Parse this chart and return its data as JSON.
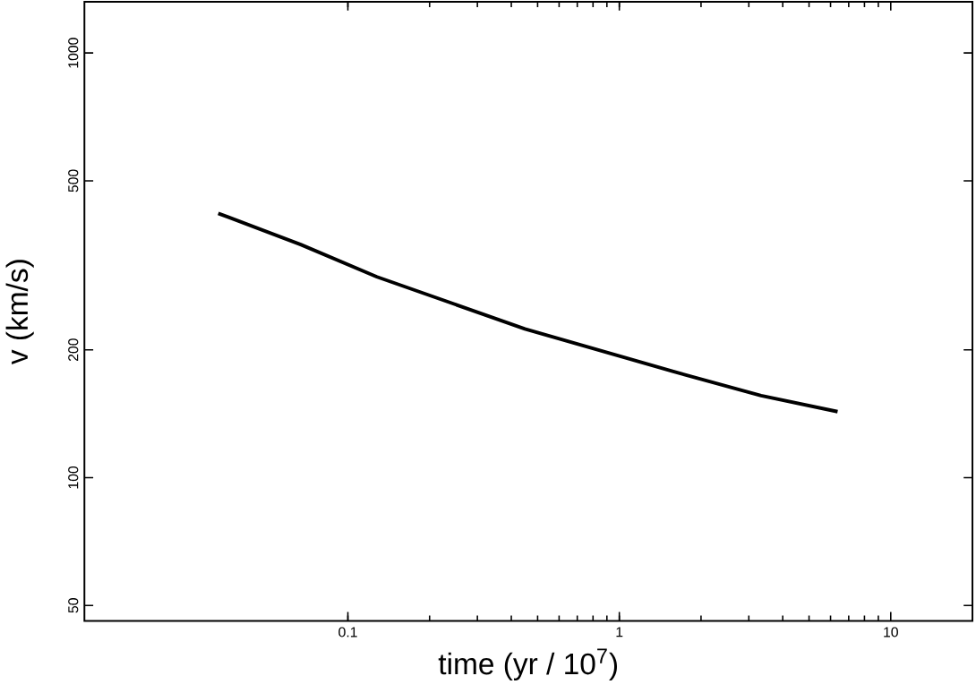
{
  "chart_data": {
    "type": "line",
    "xlabel": "time (yr / 10$^{7}$)",
    "ylabel": "v (km/s)",
    "log": "xy",
    "xlim": [
      0.0107,
      20
    ],
    "ylim": [
      46,
      1320
    ],
    "xticks": [
      0.1,
      1,
      10
    ],
    "yticks": [
      50,
      100,
      200,
      500,
      1000
    ],
    "marker": "none",
    "line_style": "solid",
    "series": [
      {
        "color": "#000000",
        "x": [
          0.0333,
          0.067,
          0.128,
          0.449,
          1.57,
          3.33,
          6.37
        ],
        "values": [
          419,
          354,
          297,
          224,
          178,
          156,
          143
        ]
      }
    ]
  }
}
